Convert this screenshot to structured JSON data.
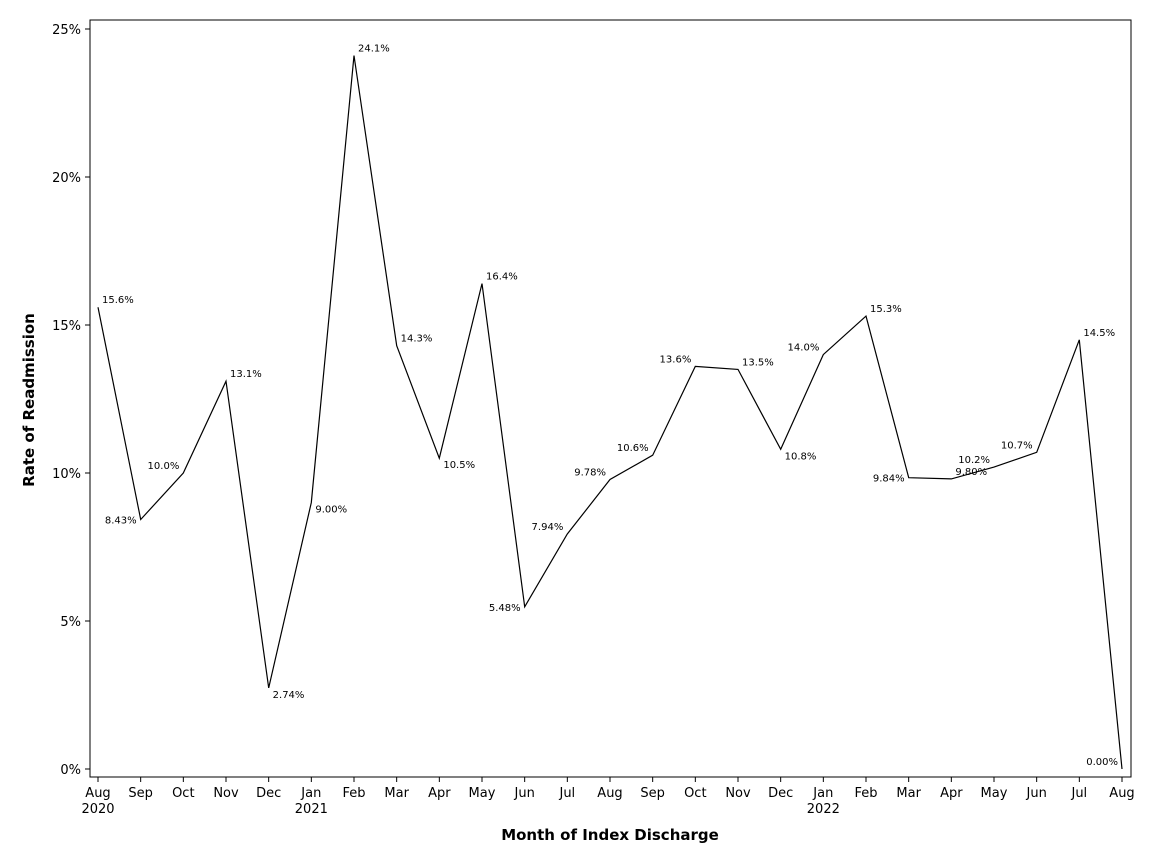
{
  "chart_data": {
    "type": "line",
    "title": "",
    "xlabel": "Month of Index Discharge",
    "ylabel": "Rate of Readmission",
    "ylim": [
      0,
      25
    ],
    "yticks": [
      {
        "value": 0,
        "label": "0%"
      },
      {
        "value": 5,
        "label": "5%"
      },
      {
        "value": 10,
        "label": "10%"
      },
      {
        "value": 15,
        "label": "15%"
      },
      {
        "value": 20,
        "label": "20%"
      },
      {
        "value": 25,
        "label": "25%"
      }
    ],
    "grid": false,
    "categories": [
      {
        "month": "Aug",
        "year": "2020"
      },
      {
        "month": "Sep",
        "year": ""
      },
      {
        "month": "Oct",
        "year": ""
      },
      {
        "month": "Nov",
        "year": ""
      },
      {
        "month": "Dec",
        "year": ""
      },
      {
        "month": "Jan",
        "year": "2021"
      },
      {
        "month": "Feb",
        "year": ""
      },
      {
        "month": "Mar",
        "year": ""
      },
      {
        "month": "Apr",
        "year": ""
      },
      {
        "month": "May",
        "year": ""
      },
      {
        "month": "Jun",
        "year": ""
      },
      {
        "month": "Jul",
        "year": ""
      },
      {
        "month": "Aug",
        "year": ""
      },
      {
        "month": "Sep",
        "year": ""
      },
      {
        "month": "Oct",
        "year": ""
      },
      {
        "month": "Nov",
        "year": ""
      },
      {
        "month": "Dec",
        "year": ""
      },
      {
        "month": "Jan",
        "year": "2022"
      },
      {
        "month": "Feb",
        "year": ""
      },
      {
        "month": "Mar",
        "year": ""
      },
      {
        "month": "Apr",
        "year": ""
      },
      {
        "month": "May",
        "year": ""
      },
      {
        "month": "Jun",
        "year": ""
      },
      {
        "month": "Jul",
        "year": ""
      },
      {
        "month": "Aug",
        "year": ""
      }
    ],
    "series": [
      {
        "name": "Rate of Readmission",
        "color": "#000000",
        "values": [
          15.6,
          8.43,
          10.0,
          13.1,
          2.74,
          9.0,
          24.1,
          14.3,
          10.5,
          16.4,
          5.48,
          7.94,
          9.78,
          10.6,
          13.6,
          13.5,
          10.8,
          14.0,
          15.3,
          9.84,
          9.8,
          10.2,
          10.7,
          14.5,
          0.0
        ],
        "labels": [
          "15.6%",
          "8.43%",
          "10.0%",
          "13.1%",
          "2.74%",
          "9.00%",
          "24.1%",
          "14.3%",
          "10.5%",
          "16.4%",
          "5.48%",
          "7.94%",
          "9.78%",
          "10.6%",
          "13.6%",
          "13.5%",
          "10.8%",
          "14.0%",
          "15.3%",
          "9.84%",
          "9.80%",
          "10.2%",
          "10.7%",
          "14.5%",
          "0.00%"
        ]
      }
    ]
  }
}
